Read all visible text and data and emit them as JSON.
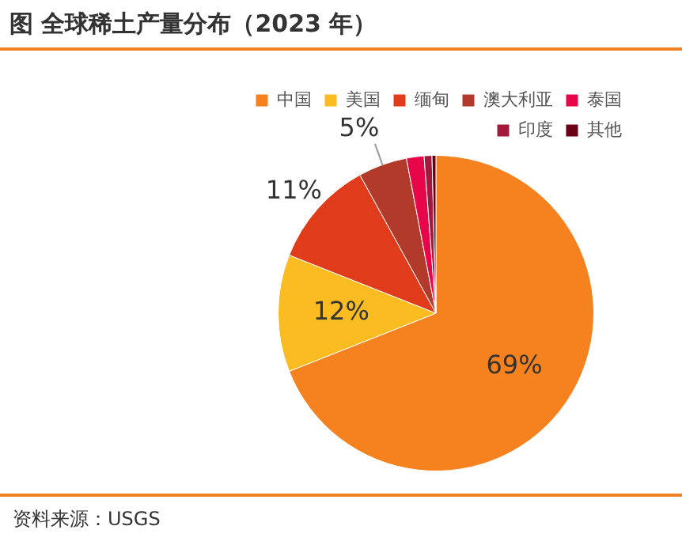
{
  "chart_data": {
    "type": "pie",
    "title": "图 全球稀土产量分布（2023 年）",
    "categories": [
      "中国",
      "美国",
      "缅甸",
      "澳大利亚",
      "泰国",
      "印度",
      "其他"
    ],
    "values": [
      69,
      12,
      11,
      5,
      1.8,
      0.8,
      0.4
    ],
    "colors": [
      "#f5821f",
      "#fbbc21",
      "#e03c1c",
      "#b23a2a",
      "#e8064a",
      "#a3193c",
      "#6a0015"
    ],
    "value_labels": [
      "69%",
      "12%",
      "11%",
      "5%",
      null,
      null,
      null
    ],
    "legend": "top right",
    "annotations": [
      "资料来源：USGS"
    ]
  }
}
